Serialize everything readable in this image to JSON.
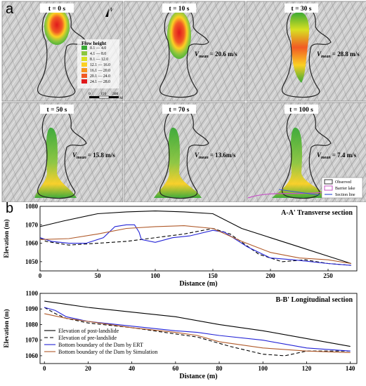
{
  "figure": {
    "panel_a_label": "a",
    "panel_b_label": "b"
  },
  "panel_a": {
    "tiles": [
      {
        "time": "t = 0 s",
        "vmean_prefix": "",
        "vmean_value": ""
      },
      {
        "time": "t = 10 s",
        "vmean_prefix": "V",
        "vmean_sub": "mean",
        "vmean_value": "= 20.6 m/s"
      },
      {
        "time": "t = 30 s",
        "vmean_prefix": "V",
        "vmean_sub": "mean",
        "vmean_value": "= 28.8 m/s"
      },
      {
        "time": "t = 50 s",
        "vmean_prefix": "V",
        "vmean_sub": "mean",
        "vmean_value": "= 15.8 m/s"
      },
      {
        "time": "t = 70 s",
        "vmean_prefix": "V",
        "vmean_sub": "mean",
        "vmean_value": "= 13.6m/s"
      },
      {
        "time": "t = 100 s",
        "vmean_prefix": "V",
        "vmean_sub": "mean",
        "vmean_value": "= 7.4 m/s"
      }
    ],
    "north_label": "N",
    "legend": {
      "title": "Flow height",
      "items": [
        {
          "label": "0.1 — 4.0",
          "color": "#39a935"
        },
        {
          "label": "4.1 — 8.0",
          "color": "#8cc63e"
        },
        {
          "label": "8.1 — 12.0",
          "color": "#d8e021"
        },
        {
          "label": "12.1 — 16.0",
          "color": "#fbd023"
        },
        {
          "label": "16.1 — 20.0",
          "color": "#f7941d"
        },
        {
          "label": "20.1 — 24.0",
          "color": "#f15a24"
        },
        {
          "label": "24.1 — 28.0",
          "color": "#e0191c"
        }
      ]
    },
    "scalebar": {
      "ticks": [
        "0",
        "150",
        "300"
      ],
      "unit": "M"
    },
    "map_legend": [
      {
        "label": "Observed",
        "color": "#333333"
      },
      {
        "label": "Barrier lake",
        "color": "#c653c6"
      },
      {
        "label": "Section line",
        "color": "#3b5bd6"
      }
    ]
  },
  "chart_data": [
    {
      "type": "line",
      "title": "A-A' Transverse section",
      "xlabel": "Distance (m)",
      "ylabel": "Elevation (m)",
      "xlim": [
        0,
        275
      ],
      "ylim": [
        1045,
        1080
      ],
      "xticks": [
        0,
        50,
        100,
        150,
        200,
        250
      ],
      "yticks": [
        1050,
        1060,
        1070,
        1080
      ],
      "series": [
        {
          "key": "post",
          "color": "#000000",
          "dash": "",
          "x": [
            0,
            20,
            50,
            75,
            100,
            125,
            150,
            175,
            200,
            225,
            250,
            270
          ],
          "y": [
            1069,
            1072,
            1076,
            1077,
            1077.5,
            1077,
            1076,
            1068,
            1063,
            1058,
            1053,
            1049
          ]
        },
        {
          "key": "pre",
          "color": "#000000",
          "dash": "5,3",
          "x": [
            0,
            5,
            25,
            50,
            75,
            100,
            125,
            150,
            165,
            190,
            210,
            230,
            250,
            270
          ],
          "y": [
            1063,
            1061,
            1059,
            1060,
            1061,
            1063,
            1065,
            1068,
            1065,
            1054,
            1050,
            1051,
            1049,
            1048
          ]
        },
        {
          "key": "ert",
          "color": "#2323d6",
          "dash": "",
          "x": [
            0,
            10,
            25,
            40,
            55,
            65,
            75,
            82,
            86,
            88,
            100,
            115,
            130,
            150,
            160,
            180,
            200,
            220,
            250,
            270
          ],
          "y": [
            1063,
            1061,
            1060,
            1060,
            1063,
            1069,
            1070,
            1070,
            1066,
            1062,
            1060.5,
            1063,
            1064,
            1067,
            1066,
            1058,
            1052,
            1051,
            1049,
            1048
          ]
        },
        {
          "key": "sim",
          "color": "#b05a2a",
          "dash": "",
          "x": [
            0,
            25,
            50,
            75,
            100,
            125,
            150,
            175,
            200,
            225,
            250,
            270
          ],
          "y": [
            1062,
            1062.5,
            1065,
            1068,
            1069,
            1069.5,
            1068,
            1061,
            1055,
            1052,
            1051,
            1049
          ]
        }
      ]
    },
    {
      "type": "line",
      "title": "B-B' Longitudinal section",
      "xlabel": "Distance (m)",
      "ylabel": "Elevation (m)",
      "xlim": [
        -2,
        143
      ],
      "ylim": [
        1055,
        1100
      ],
      "xticks": [
        0,
        20,
        40,
        60,
        80,
        100,
        120,
        140
      ],
      "yticks": [
        1060,
        1070,
        1080,
        1090,
        1100
      ],
      "legend": [
        {
          "label": "Elevation of post-landslide",
          "color": "#000000",
          "dash": ""
        },
        {
          "label": "Elevation of pre-landslide",
          "color": "#000000",
          "dash": "5,3"
        },
        {
          "label": "Bottom boundary of the Dam by ERT",
          "color": "#2323d6",
          "dash": ""
        },
        {
          "label": "Bottom boundary of the Dam by Simulation",
          "color": "#b05a2a",
          "dash": ""
        }
      ],
      "series": [
        {
          "key": "post",
          "color": "#000000",
          "dash": "",
          "x": [
            0,
            10,
            20,
            40,
            60,
            80,
            100,
            120,
            140
          ],
          "y": [
            1095,
            1093,
            1091,
            1088,
            1085,
            1080,
            1076,
            1071,
            1066
          ]
        },
        {
          "key": "pre",
          "color": "#000000",
          "dash": "5,3",
          "x": [
            0,
            5,
            10,
            20,
            40,
            60,
            70,
            85,
            100,
            110,
            120,
            130,
            140
          ],
          "y": [
            1091,
            1087,
            1084,
            1081,
            1078,
            1074,
            1072,
            1066,
            1061,
            1060,
            1063,
            1063,
            1063
          ]
        },
        {
          "key": "ert",
          "color": "#2323d6",
          "dash": "",
          "x": [
            0,
            5,
            10,
            20,
            40,
            60,
            70,
            80,
            100,
            120,
            140
          ],
          "y": [
            1091,
            1089,
            1085,
            1082,
            1079,
            1076,
            1075,
            1073,
            1070,
            1065,
            1063
          ]
        },
        {
          "key": "sim",
          "color": "#b05a2a",
          "dash": "",
          "x": [
            0,
            10,
            20,
            40,
            60,
            70,
            80,
            100,
            120,
            140
          ],
          "y": [
            1087,
            1084,
            1082,
            1078,
            1075,
            1073,
            1069,
            1065,
            1063,
            1062
          ]
        }
      ]
    }
  ]
}
